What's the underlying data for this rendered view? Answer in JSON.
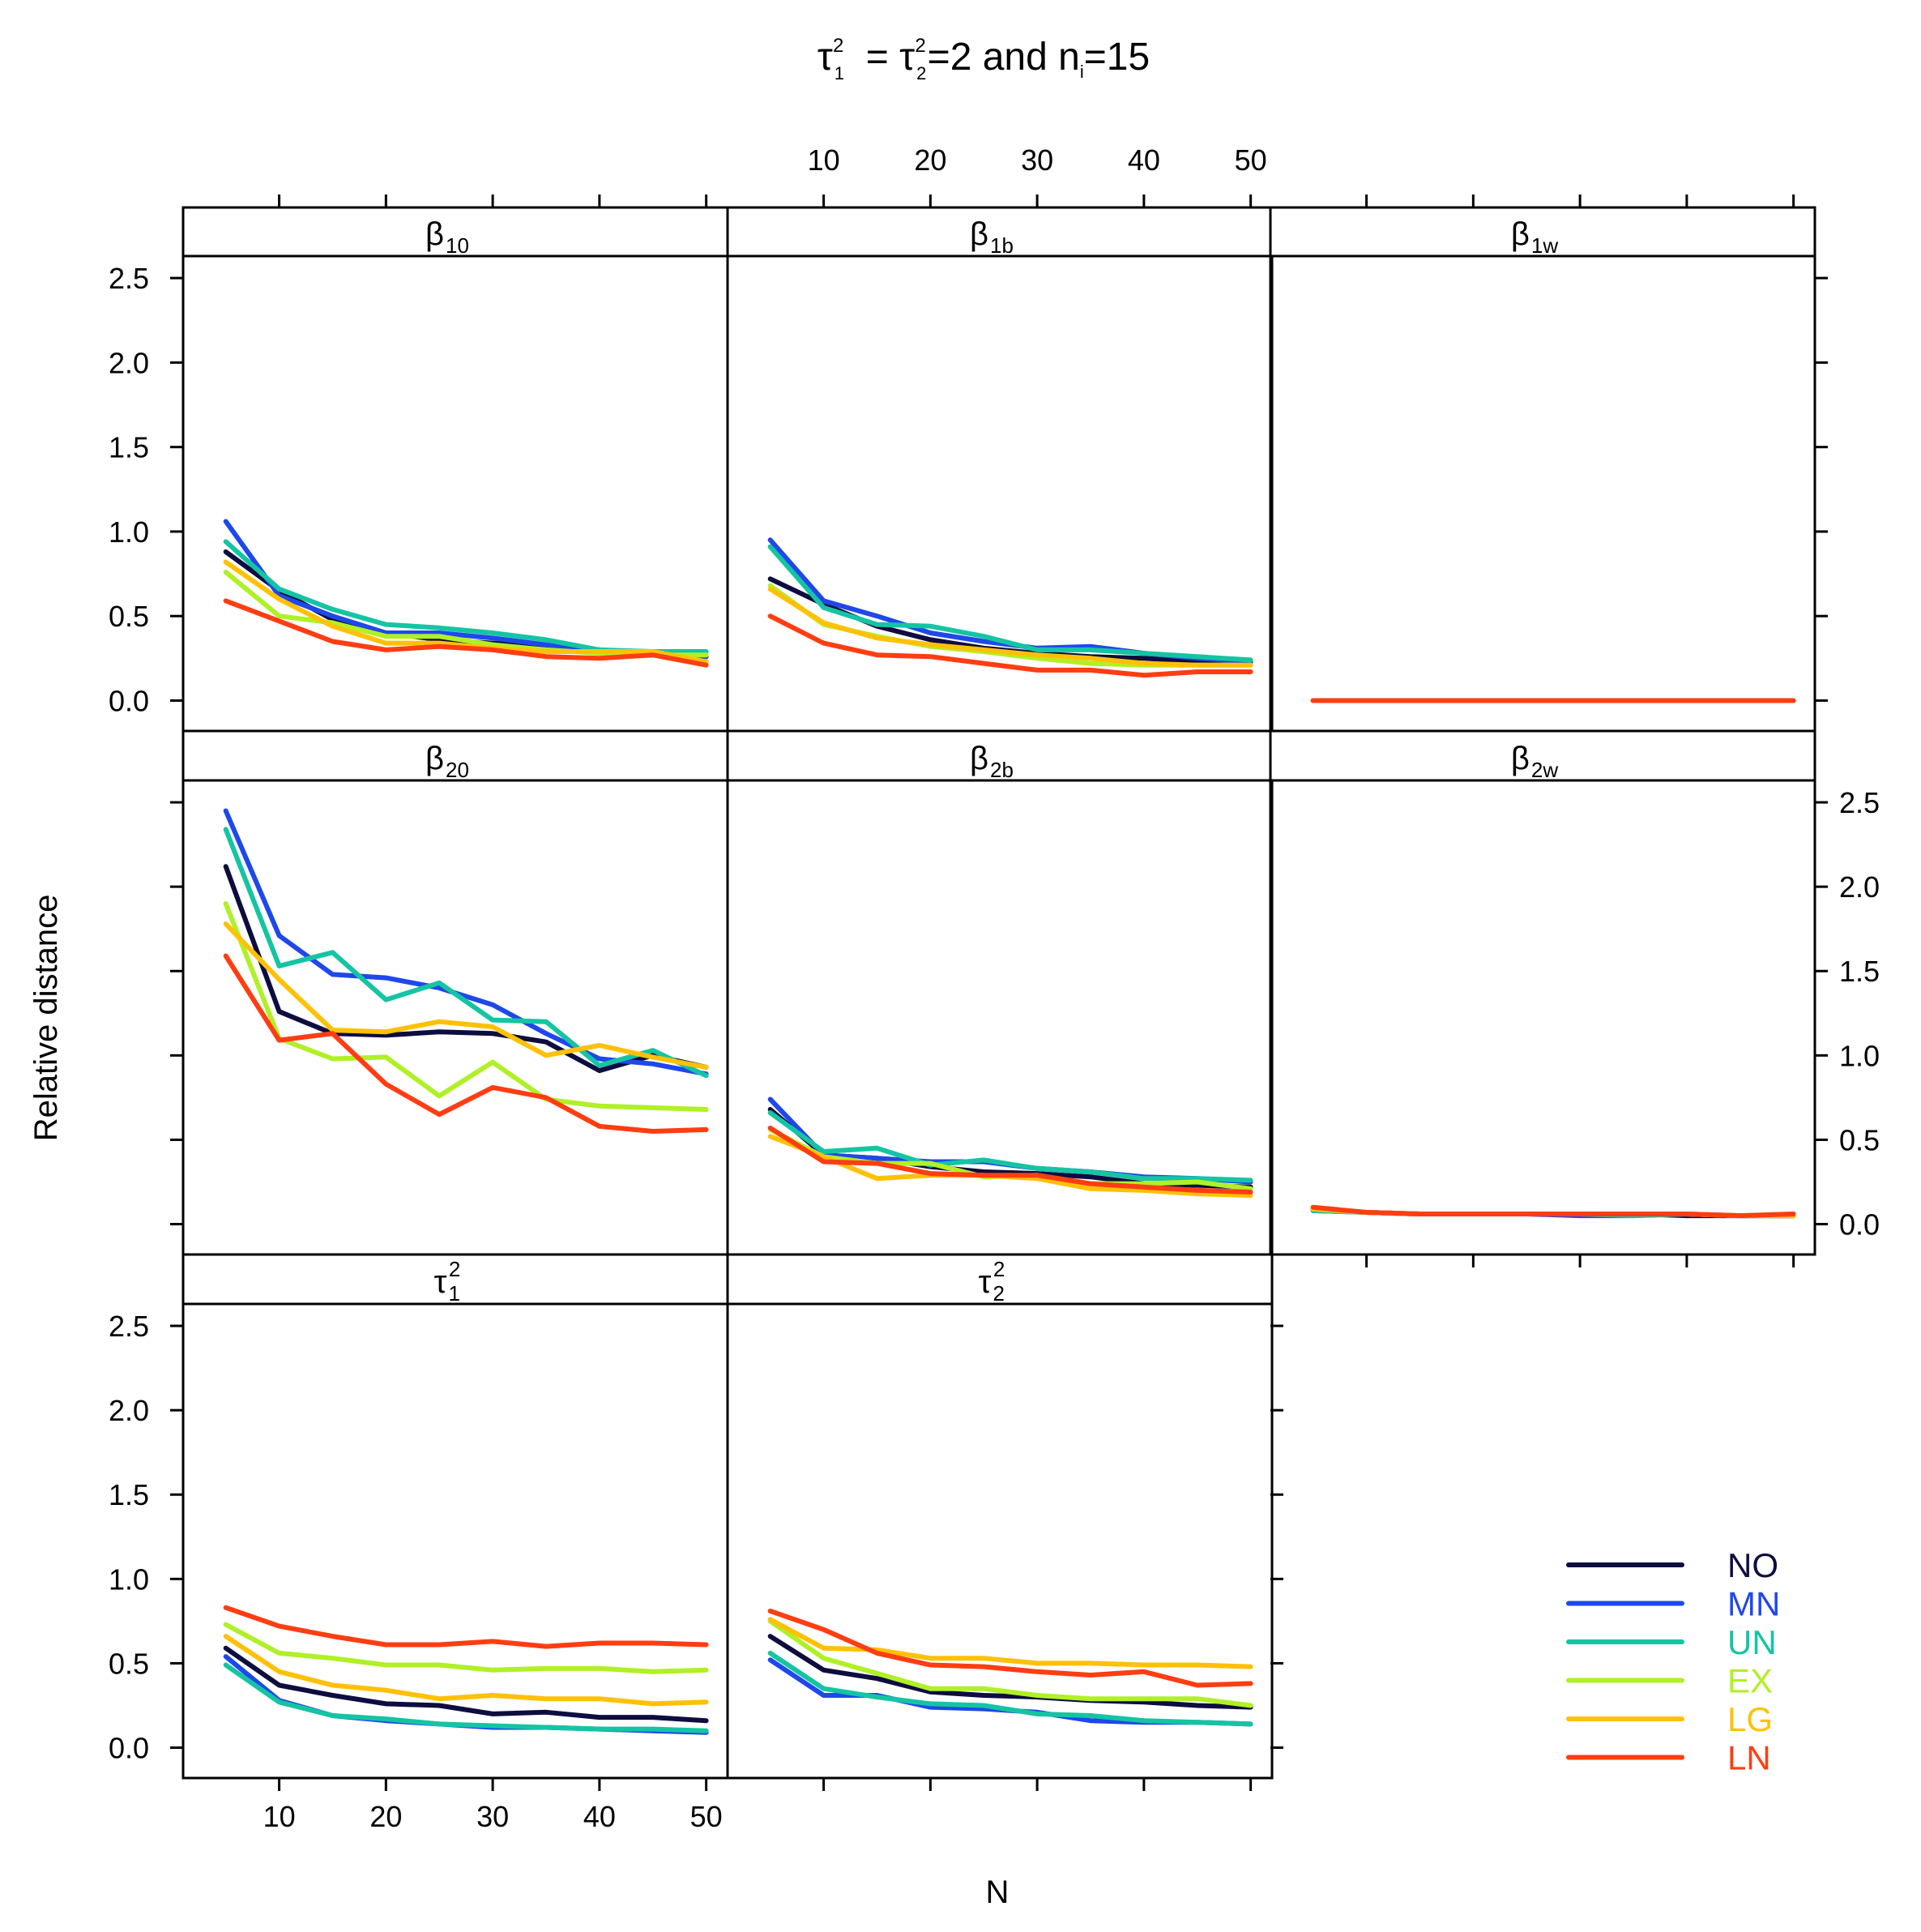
{
  "chart_data": {
    "type": "line",
    "title": {
      "symbol": "τ",
      "sub1": "1",
      "sub2": "2",
      "sup": "2",
      "value_text": "=2 and n",
      "ni_sub": "i",
      "ni_value": "=15"
    },
    "xlabel": "N",
    "ylabel": "Relative distance",
    "x": [
      5,
      10,
      15,
      20,
      25,
      30,
      35,
      40,
      45,
      50
    ],
    "xlim": [
      1,
      52
    ],
    "ylim": [
      -0.18,
      2.63
    ],
    "x_ticks": [
      "10",
      "20",
      "30",
      "40",
      "50"
    ],
    "y_ticks": [
      "0.0",
      "0.5",
      "1.0",
      "1.5",
      "2.0",
      "2.5"
    ],
    "legend": {
      "position": "bottom-right",
      "entries": [
        {
          "label": "NO",
          "color": "#0d0d40"
        },
        {
          "label": "MN",
          "color": "#1f48ea"
        },
        {
          "label": "UN",
          "color": "#15c4a3"
        },
        {
          "label": "EX",
          "color": "#b0f026"
        },
        {
          "label": "LG",
          "color": "#ffc107"
        },
        {
          "label": "LN",
          "color": "#ff3d12"
        }
      ]
    },
    "panels": [
      {
        "strip": {
          "base": "β",
          "sub": "10",
          "sup": ""
        },
        "series": [
          {
            "name": "NO",
            "values": [
              0.88,
              0.65,
              0.48,
              0.4,
              0.36,
              0.34,
              0.32,
              0.3,
              0.28,
              0.26
            ]
          },
          {
            "name": "MN",
            "values": [
              1.06,
              0.62,
              0.5,
              0.4,
              0.4,
              0.37,
              0.33,
              0.3,
              0.28,
              0.26
            ]
          },
          {
            "name": "UN",
            "values": [
              0.94,
              0.66,
              0.54,
              0.45,
              0.43,
              0.4,
              0.36,
              0.3,
              0.29,
              0.29
            ]
          },
          {
            "name": "EX",
            "values": [
              0.76,
              0.5,
              0.46,
              0.38,
              0.38,
              0.33,
              0.3,
              0.28,
              0.27,
              0.27
            ]
          },
          {
            "name": "LG",
            "values": [
              0.82,
              0.6,
              0.44,
              0.34,
              0.34,
              0.31,
              0.29,
              0.29,
              0.29,
              0.23
            ]
          },
          {
            "name": "LN",
            "values": [
              0.59,
              0.47,
              0.35,
              0.3,
              0.32,
              0.3,
              0.26,
              0.25,
              0.27,
              0.21
            ]
          }
        ]
      },
      {
        "strip": {
          "base": "β",
          "sub": "1b",
          "sup": ""
        },
        "series": [
          {
            "name": "NO",
            "values": [
              0.72,
              0.57,
              0.44,
              0.36,
              0.31,
              0.28,
              0.26,
              0.25,
              0.23,
              0.23
            ]
          },
          {
            "name": "MN",
            "values": [
              0.95,
              0.59,
              0.5,
              0.4,
              0.35,
              0.31,
              0.32,
              0.28,
              0.25,
              0.23
            ]
          },
          {
            "name": "UN",
            "values": [
              0.91,
              0.55,
              0.45,
              0.44,
              0.38,
              0.3,
              0.3,
              0.28,
              0.26,
              0.24
            ]
          },
          {
            "name": "EX",
            "values": [
              0.68,
              0.45,
              0.38,
              0.32,
              0.29,
              0.25,
              0.22,
              0.21,
              0.21,
              0.21
            ]
          },
          {
            "name": "LG",
            "values": [
              0.66,
              0.46,
              0.37,
              0.33,
              0.3,
              0.27,
              0.25,
              0.22,
              0.21,
              0.21
            ]
          },
          {
            "name": "LN",
            "values": [
              0.5,
              0.34,
              0.27,
              0.26,
              0.22,
              0.18,
              0.18,
              0.15,
              0.17,
              0.17
            ]
          }
        ]
      },
      {
        "strip": {
          "base": "β",
          "sub": "1w",
          "sup": ""
        },
        "series": [
          {
            "name": "NO",
            "values": [
              0.0,
              0.0,
              0.0,
              0.0,
              0.0,
              0.0,
              0.0,
              0.0,
              0.0,
              0.0
            ]
          },
          {
            "name": "MN",
            "values": [
              0.0,
              0.0,
              0.0,
              0.0,
              0.0,
              0.0,
              0.0,
              0.0,
              0.0,
              0.0
            ]
          },
          {
            "name": "UN",
            "values": [
              0.0,
              0.0,
              0.0,
              0.0,
              0.0,
              0.0,
              0.0,
              0.0,
              0.0,
              0.0
            ]
          },
          {
            "name": "EX",
            "values": [
              0.0,
              0.0,
              0.0,
              0.0,
              0.0,
              0.0,
              0.0,
              0.0,
              0.0,
              0.0
            ]
          },
          {
            "name": "LG",
            "values": [
              0.0,
              0.0,
              0.0,
              0.0,
              0.0,
              0.0,
              0.0,
              0.0,
              0.0,
              0.0
            ]
          },
          {
            "name": "LN",
            "values": [
              0.0,
              0.0,
              0.0,
              0.0,
              0.0,
              0.0,
              0.0,
              0.0,
              0.0,
              0.0
            ]
          }
        ]
      },
      {
        "strip": {
          "base": "β",
          "sub": "20",
          "sup": ""
        },
        "series": [
          {
            "name": "NO",
            "values": [
              2.12,
              1.26,
              1.13,
              1.12,
              1.14,
              1.13,
              1.08,
              0.91,
              1.0,
              0.93
            ]
          },
          {
            "name": "MN",
            "values": [
              2.45,
              1.71,
              1.48,
              1.46,
              1.4,
              1.3,
              1.13,
              0.98,
              0.95,
              0.89
            ]
          },
          {
            "name": "UN",
            "values": [
              2.34,
              1.53,
              1.61,
              1.33,
              1.43,
              1.21,
              1.2,
              0.94,
              1.03,
              0.88
            ]
          },
          {
            "name": "EX",
            "values": [
              1.9,
              1.1,
              0.98,
              0.99,
              0.76,
              0.96,
              0.74,
              0.7,
              0.69,
              0.68
            ]
          },
          {
            "name": "LG",
            "values": [
              1.78,
              1.45,
              1.15,
              1.14,
              1.2,
              1.17,
              1.0,
              1.06,
              0.99,
              0.93
            ]
          },
          {
            "name": "LN",
            "values": [
              1.59,
              1.09,
              1.13,
              0.83,
              0.65,
              0.81,
              0.75,
              0.58,
              0.55,
              0.56
            ]
          }
        ]
      },
      {
        "strip": {
          "base": "β",
          "sub": "2b",
          "sup": ""
        },
        "series": [
          {
            "name": "NO",
            "values": [
              0.68,
              0.41,
              0.39,
              0.34,
              0.31,
              0.3,
              0.28,
              0.24,
              0.23,
              0.22
            ]
          },
          {
            "name": "MN",
            "values": [
              0.74,
              0.41,
              0.39,
              0.37,
              0.37,
              0.33,
              0.31,
              0.28,
              0.27,
              0.25
            ]
          },
          {
            "name": "UN",
            "values": [
              0.66,
              0.43,
              0.45,
              0.35,
              0.38,
              0.33,
              0.31,
              0.27,
              0.27,
              0.26
            ]
          },
          {
            "name": "EX",
            "values": [
              0.56,
              0.4,
              0.36,
              0.36,
              0.28,
              0.29,
              0.24,
              0.24,
              0.25,
              0.21
            ]
          },
          {
            "name": "LG",
            "values": [
              0.52,
              0.4,
              0.27,
              0.29,
              0.29,
              0.27,
              0.21,
              0.2,
              0.18,
              0.17
            ]
          },
          {
            "name": "LN",
            "values": [
              0.57,
              0.37,
              0.36,
              0.3,
              0.29,
              0.29,
              0.24,
              0.22,
              0.2,
              0.19
            ]
          }
        ]
      },
      {
        "strip": {
          "base": "β",
          "sub": "2w",
          "sup": ""
        },
        "series": [
          {
            "name": "NO",
            "values": [
              0.09,
              0.07,
              0.06,
              0.06,
              0.06,
              0.06,
              0.06,
              0.05,
              0.05,
              0.05
            ]
          },
          {
            "name": "MN",
            "values": [
              0.08,
              0.07,
              0.06,
              0.06,
              0.06,
              0.05,
              0.05,
              0.06,
              0.05,
              0.05
            ]
          },
          {
            "name": "UN",
            "values": [
              0.08,
              0.07,
              0.06,
              0.06,
              0.06,
              0.06,
              0.05,
              0.06,
              0.05,
              0.05
            ]
          },
          {
            "name": "EX",
            "values": [
              0.09,
              0.07,
              0.06,
              0.06,
              0.06,
              0.06,
              0.06,
              0.06,
              0.05,
              0.06
            ]
          },
          {
            "name": "LG",
            "values": [
              0.09,
              0.07,
              0.06,
              0.06,
              0.06,
              0.06,
              0.06,
              0.06,
              0.05,
              0.05
            ]
          },
          {
            "name": "LN",
            "values": [
              0.1,
              0.07,
              0.06,
              0.06,
              0.06,
              0.06,
              0.06,
              0.06,
              0.05,
              0.06
            ]
          }
        ]
      },
      {
        "strip": {
          "base": "τ",
          "sub": "1",
          "sup": "2"
        },
        "series": [
          {
            "name": "NO",
            "values": [
              0.59,
              0.37,
              0.31,
              0.26,
              0.25,
              0.2,
              0.21,
              0.18,
              0.18,
              0.16
            ]
          },
          {
            "name": "MN",
            "values": [
              0.54,
              0.28,
              0.19,
              0.16,
              0.14,
              0.12,
              0.12,
              0.11,
              0.1,
              0.09
            ]
          },
          {
            "name": "UN",
            "values": [
              0.49,
              0.27,
              0.19,
              0.17,
              0.14,
              0.13,
              0.12,
              0.11,
              0.11,
              0.1
            ]
          },
          {
            "name": "EX",
            "values": [
              0.73,
              0.56,
              0.53,
              0.49,
              0.49,
              0.46,
              0.47,
              0.47,
              0.45,
              0.46
            ]
          },
          {
            "name": "LG",
            "values": [
              0.66,
              0.45,
              0.37,
              0.34,
              0.29,
              0.31,
              0.29,
              0.29,
              0.26,
              0.27
            ]
          },
          {
            "name": "LN",
            "values": [
              0.83,
              0.72,
              0.66,
              0.61,
              0.61,
              0.63,
              0.6,
              0.62,
              0.62,
              0.61
            ]
          }
        ]
      },
      {
        "strip": {
          "base": "τ",
          "sub": "2",
          "sup": "2"
        },
        "series": [
          {
            "name": "NO",
            "values": [
              0.66,
              0.46,
              0.41,
              0.33,
              0.31,
              0.3,
              0.28,
              0.27,
              0.25,
              0.24
            ]
          },
          {
            "name": "MN",
            "values": [
              0.52,
              0.31,
              0.31,
              0.24,
              0.23,
              0.21,
              0.16,
              0.15,
              0.15,
              0.14
            ]
          },
          {
            "name": "UN",
            "values": [
              0.56,
              0.35,
              0.3,
              0.26,
              0.25,
              0.2,
              0.19,
              0.16,
              0.15,
              0.14
            ]
          },
          {
            "name": "EX",
            "values": [
              0.75,
              0.53,
              0.44,
              0.35,
              0.35,
              0.31,
              0.29,
              0.29,
              0.29,
              0.25
            ]
          },
          {
            "name": "LG",
            "values": [
              0.76,
              0.59,
              0.58,
              0.53,
              0.53,
              0.5,
              0.5,
              0.49,
              0.49,
              0.48
            ]
          },
          {
            "name": "LN",
            "values": [
              0.81,
              0.7,
              0.56,
              0.49,
              0.48,
              0.45,
              0.43,
              0.45,
              0.37,
              0.38
            ]
          }
        ]
      }
    ]
  }
}
